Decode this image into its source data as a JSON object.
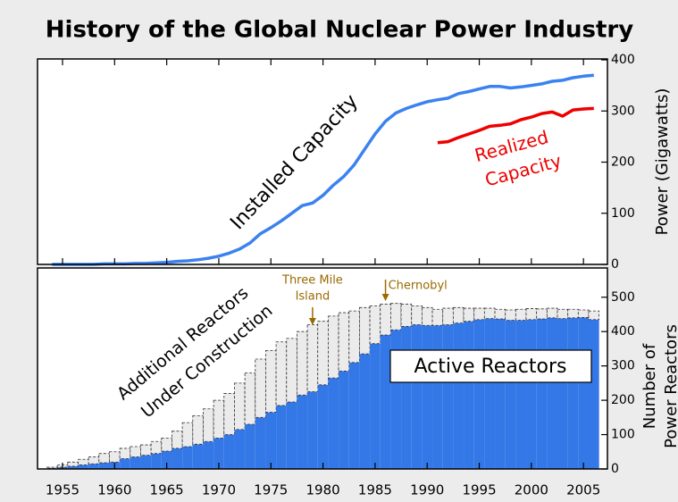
{
  "title": "History of the Global Nuclear Power Industry",
  "chart_data": [
    {
      "type": "line",
      "xlim": [
        1952.6,
        2007.3
      ],
      "xticks": [
        1955,
        1960,
        1965,
        1970,
        1975,
        1980,
        1985,
        1990,
        1995,
        2000,
        2005
      ],
      "ylim": [
        0,
        400
      ],
      "yticks": [
        0,
        100,
        200,
        300,
        400
      ],
      "ylabel": "Power (Gigawatts)",
      "series": [
        {
          "label": [
            "Installed Capacity"
          ],
          "color": "#3b82f0",
          "x": [
            1954,
            1955,
            1956,
            1957,
            1958,
            1959,
            1960,
            1961,
            1962,
            1963,
            1964,
            1965,
            1966,
            1967,
            1968,
            1969,
            1970,
            1971,
            1972,
            1973,
            1974,
            1975,
            1976,
            1977,
            1978,
            1979,
            1980,
            1981,
            1982,
            1983,
            1984,
            1985,
            1986,
            1987,
            1988,
            1989,
            1990,
            1991,
            1992,
            1993,
            1994,
            1995,
            1996,
            1997,
            1998,
            1999,
            2000,
            2001,
            2002,
            2003,
            2004,
            2005,
            2006
          ],
          "values": [
            0,
            0,
            0,
            0,
            0,
            1,
            1,
            1,
            2,
            2,
            3,
            4,
            6,
            7,
            9,
            12,
            16,
            22,
            30,
            42,
            60,
            72,
            85,
            100,
            115,
            120,
            135,
            155,
            172,
            195,
            225,
            255,
            280,
            296,
            305,
            312,
            318,
            322,
            325,
            334,
            338,
            343,
            348,
            348,
            345,
            347,
            350,
            353,
            358,
            360,
            365,
            368,
            370
          ]
        },
        {
          "label": [
            "Realized",
            "Capacity"
          ],
          "color": "#ee0000",
          "x": [
            1991,
            1992,
            1993,
            1994,
            1995,
            1996,
            1997,
            1998,
            1999,
            2000,
            2001,
            2002,
            2003,
            2004,
            2005,
            2006
          ],
          "values": [
            238,
            240,
            248,
            255,
            262,
            270,
            272,
            275,
            283,
            288,
            295,
            298,
            290,
            302,
            304,
            305
          ]
        }
      ]
    },
    {
      "type": "stacked_bar",
      "xlim": [
        1952.6,
        2007.3
      ],
      "xticks": [
        1955,
        1960,
        1965,
        1970,
        1975,
        1980,
        1985,
        1990,
        1995,
        2000,
        2005
      ],
      "ylim": [
        0,
        580
      ],
      "yticks": [
        0,
        100,
        200,
        300,
        400,
        500
      ],
      "ylabel": [
        "Number of",
        "Power Reactors"
      ],
      "x": [
        1954,
        1955,
        1956,
        1957,
        1958,
        1959,
        1960,
        1961,
        1962,
        1963,
        1964,
        1965,
        1966,
        1967,
        1968,
        1969,
        1970,
        1971,
        1972,
        1973,
        1974,
        1975,
        1976,
        1977,
        1978,
        1979,
        1980,
        1981,
        1982,
        1983,
        1984,
        1985,
        1986,
        1987,
        1988,
        1989,
        1990,
        1991,
        1992,
        1993,
        1994,
        1995,
        1996,
        1997,
        1998,
        1999,
        2000,
        2001,
        2002,
        2003,
        2004,
        2005,
        2006
      ],
      "series": [
        {
          "label": [
            "Active Reactors"
          ],
          "color": "#3477e6",
          "values": [
            2,
            5,
            8,
            12,
            15,
            18,
            20,
            30,
            35,
            40,
            45,
            52,
            60,
            65,
            72,
            80,
            90,
            100,
            115,
            130,
            150,
            165,
            185,
            195,
            215,
            225,
            245,
            265,
            285,
            310,
            335,
            365,
            390,
            405,
            415,
            420,
            418,
            418,
            420,
            425,
            430,
            435,
            438,
            437,
            433,
            433,
            435,
            437,
            440,
            438,
            440,
            441,
            435
          ]
        },
        {
          "label": [
            "Additional Reactors",
            "Under Construction"
          ],
          "color": "#ebebeb",
          "values": [
            3,
            7,
            12,
            16,
            20,
            27,
            30,
            30,
            30,
            30,
            35,
            38,
            50,
            70,
            83,
            95,
            110,
            120,
            135,
            150,
            170,
            180,
            185,
            185,
            185,
            195,
            185,
            180,
            170,
            150,
            135,
            110,
            90,
            77,
            65,
            55,
            52,
            47,
            48,
            45,
            38,
            33,
            30,
            28,
            30,
            32,
            32,
            29,
            28,
            27,
            25,
            22,
            25
          ]
        }
      ],
      "events": [
        {
          "year": 1979,
          "label": [
            "Three Mile",
            "Island"
          ]
        },
        {
          "year": 1986,
          "label": [
            "Chernobyl"
          ]
        }
      ]
    }
  ]
}
